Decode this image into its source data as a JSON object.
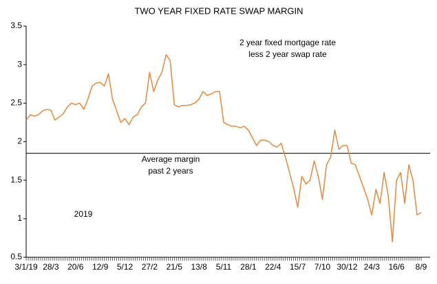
{
  "chart_data": {
    "type": "line",
    "title": "TWO YEAR FIXED RATE SWAP MARGIN",
    "annotations": [
      "2 year fixed mortgage rate",
      "less 2 year swap rate",
      "Average margin",
      "past 2 years",
      "2019"
    ],
    "average": 1.85,
    "categories": [
      "3/1/19",
      null,
      null,
      null,
      null,
      null,
      "28/3",
      null,
      null,
      null,
      null,
      null,
      "20/6",
      null,
      null,
      null,
      null,
      null,
      "12/9",
      null,
      null,
      null,
      null,
      null,
      "5/12",
      null,
      null,
      null,
      null,
      null,
      "27/2",
      null,
      null,
      null,
      null,
      null,
      "21/5",
      null,
      null,
      null,
      null,
      null,
      "13/8",
      null,
      null,
      null,
      null,
      null,
      "5/11",
      null,
      null,
      null,
      null,
      null,
      "28/1",
      null,
      null,
      null,
      null,
      null,
      "22/4",
      null,
      null,
      null,
      null,
      null,
      "15/7",
      null,
      null,
      null,
      null,
      null,
      "7/10",
      null,
      null,
      null,
      null,
      null,
      "30/12",
      null,
      null,
      null,
      null,
      null,
      "24/3",
      null,
      null,
      null,
      null,
      null,
      "16/6",
      null,
      null,
      null,
      null,
      null,
      "8/9"
    ],
    "series": [
      {
        "name": "Margin",
        "color": "#e8873a",
        "values": [
          2.28,
          2.35,
          2.33,
          2.35,
          2.4,
          2.42,
          2.41,
          2.28,
          2.32,
          2.36,
          2.45,
          2.5,
          2.48,
          2.5,
          2.42,
          2.55,
          2.72,
          2.76,
          2.77,
          2.72,
          2.88,
          2.55,
          2.4,
          2.25,
          2.3,
          2.22,
          2.32,
          2.35,
          2.45,
          2.5,
          2.9,
          2.65,
          2.8,
          2.9,
          3.13,
          3.05,
          2.48,
          2.45,
          2.47,
          2.47,
          2.48,
          2.5,
          2.55,
          2.65,
          2.6,
          2.62,
          2.65,
          2.65,
          2.25,
          2.22,
          2.2,
          2.2,
          2.18,
          2.2,
          2.15,
          2.05,
          1.95,
          2.02,
          2.02,
          2.0,
          1.95,
          1.93,
          1.98,
          1.8,
          1.6,
          1.4,
          1.15,
          1.55,
          1.45,
          1.5,
          1.75,
          1.55,
          1.25,
          1.7,
          1.8,
          2.15,
          1.9,
          1.95,
          1.95,
          1.72,
          1.7,
          1.55,
          1.4,
          1.25,
          1.05,
          1.38,
          1.2,
          1.6,
          1.3,
          0.7,
          1.5,
          1.6,
          1.2,
          1.7,
          1.5,
          1.05,
          1.08
        ]
      }
    ],
    "ylim": [
      0.5,
      3.5
    ],
    "yticks": [
      0.5,
      1,
      1.5,
      2,
      2.5,
      3,
      3.5
    ],
    "grid": false
  }
}
